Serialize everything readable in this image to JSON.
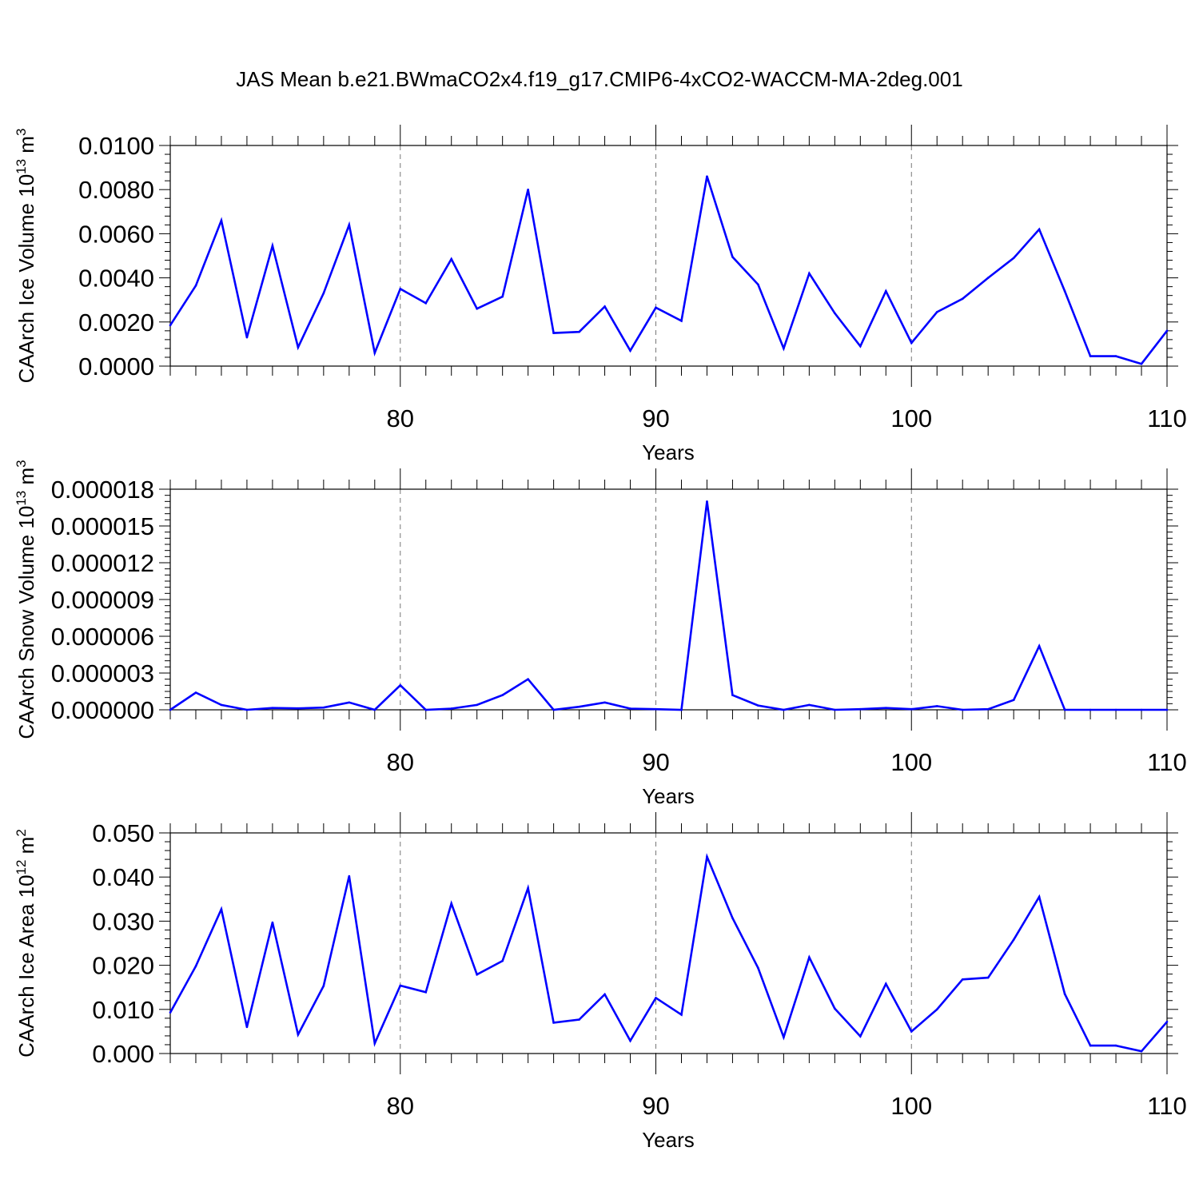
{
  "title": "JAS Mean b.e21.BWmaCO2x4.f19_g17.CMIP6-4xCO2-WACCM-MA-2deg.001",
  "line_color": "#0000ff",
  "chart_data": [
    {
      "type": "line",
      "xlabel": "Years",
      "ylabel": "CAArch Ice Volume 10",
      "ylabel_sup": "13",
      "ylabel_unit": " m",
      "ylabel_unit_sup": "3",
      "xlim": [
        71,
        110
      ],
      "ylim": [
        0,
        0.01
      ],
      "grid": "dashed vertical at major x ticks",
      "xticks": [
        80,
        90,
        100,
        110
      ],
      "xtick_labels": [
        "80",
        "90",
        "100",
        "110"
      ],
      "yticks": [
        0,
        0.002,
        0.004,
        0.006,
        0.008,
        0.01
      ],
      "ytick_labels": [
        "0.0000",
        "0.0020",
        "0.0040",
        "0.0060",
        "0.0080",
        "0.0100"
      ],
      "x": [
        71,
        72,
        73,
        74,
        75,
        76,
        77,
        78,
        79,
        80,
        81,
        82,
        83,
        84,
        85,
        86,
        87,
        88,
        89,
        90,
        91,
        92,
        93,
        94,
        95,
        96,
        97,
        98,
        99,
        100,
        101,
        102,
        103,
        104,
        105,
        106,
        107,
        108,
        109,
        110
      ],
      "values": [
        0.00185,
        0.00365,
        0.0066,
        0.0013,
        0.00545,
        0.00085,
        0.0033,
        0.0064,
        0.0006,
        0.0035,
        0.00285,
        0.00485,
        0.0026,
        0.00315,
        0.008,
        0.0015,
        0.00155,
        0.0027,
        0.0007,
        0.00265,
        0.00205,
        0.0086,
        0.00495,
        0.0037,
        0.0008,
        0.0042,
        0.0024,
        0.0009,
        0.0034,
        0.00105,
        0.00245,
        0.00305,
        0.004,
        0.0049,
        0.0062,
        0.0034,
        0.00045,
        0.00045,
        0.0001,
        0.0016
      ]
    },
    {
      "type": "line",
      "xlabel": "Years",
      "ylabel": "CAArch Snow Volume 10",
      "ylabel_sup": "13",
      "ylabel_unit": " m",
      "ylabel_unit_sup": "3",
      "xlim": [
        71,
        110
      ],
      "ylim": [
        0,
        1.8e-05
      ],
      "grid": "dashed vertical at major x ticks",
      "xticks": [
        80,
        90,
        100,
        110
      ],
      "xtick_labels": [
        "80",
        "90",
        "100",
        "110"
      ],
      "yticks": [
        0,
        3e-06,
        6e-06,
        9e-06,
        1.2e-05,
        1.5e-05,
        1.8e-05
      ],
      "ytick_labels": [
        "0.000000",
        "0.000003",
        "0.000006",
        "0.000009",
        "0.000012",
        "0.000015",
        "0.000018"
      ],
      "x": [
        71,
        72,
        73,
        74,
        75,
        76,
        77,
        78,
        79,
        80,
        81,
        82,
        83,
        84,
        85,
        86,
        87,
        88,
        89,
        90,
        91,
        92,
        93,
        94,
        95,
        96,
        97,
        98,
        99,
        100,
        101,
        102,
        103,
        104,
        105,
        106,
        107,
        108,
        109,
        110
      ],
      "values": [
        0.0,
        1.4e-06,
        4e-07,
        0.0,
        1.5e-07,
        1.2e-07,
        1.8e-07,
        6e-07,
        0.0,
        2e-06,
        0.0,
        1e-07,
        4e-07,
        1.2e-06,
        2.5e-06,
        0.0,
        2.5e-07,
        6e-07,
        1e-07,
        5e-08,
        0.0,
        1.7e-05,
        1.2e-06,
        3.5e-07,
        0.0,
        4e-07,
        0.0,
        5e-08,
        1.5e-07,
        5e-08,
        3e-07,
        0.0,
        5e-08,
        8e-07,
        5.2e-06,
        0.0,
        0.0,
        0.0,
        0.0,
        0.0
      ]
    },
    {
      "type": "line",
      "xlabel": "Years",
      "ylabel": "CAArch Ice Area 10",
      "ylabel_sup": "12",
      "ylabel_unit": " m",
      "ylabel_unit_sup": "2",
      "xlim": [
        71,
        110
      ],
      "ylim": [
        0,
        0.05
      ],
      "grid": "dashed vertical at major x ticks",
      "xticks": [
        80,
        90,
        100,
        110
      ],
      "xtick_labels": [
        "80",
        "90",
        "100",
        "110"
      ],
      "yticks": [
        0,
        0.01,
        0.02,
        0.03,
        0.04,
        0.05
      ],
      "ytick_labels": [
        "0.000",
        "0.010",
        "0.020",
        "0.030",
        "0.040",
        "0.050"
      ],
      "x": [
        71,
        72,
        73,
        74,
        75,
        76,
        77,
        78,
        79,
        80,
        81,
        82,
        83,
        84,
        85,
        86,
        87,
        88,
        89,
        90,
        91,
        92,
        93,
        94,
        95,
        96,
        97,
        98,
        99,
        100,
        101,
        102,
        103,
        104,
        105,
        106,
        107,
        108,
        109,
        110
      ],
      "values": [
        0.0093,
        0.0198,
        0.0327,
        0.006,
        0.0297,
        0.0043,
        0.0153,
        0.0402,
        0.0023,
        0.0154,
        0.0139,
        0.034,
        0.0179,
        0.021,
        0.0375,
        0.007,
        0.0077,
        0.0134,
        0.0029,
        0.0126,
        0.0088,
        0.0446,
        0.0307,
        0.0194,
        0.0037,
        0.0218,
        0.0102,
        0.0039,
        0.0158,
        0.005,
        0.01,
        0.0168,
        0.0172,
        0.0258,
        0.0355,
        0.0135,
        0.0018,
        0.0018,
        0.0005,
        0.0072
      ]
    }
  ]
}
